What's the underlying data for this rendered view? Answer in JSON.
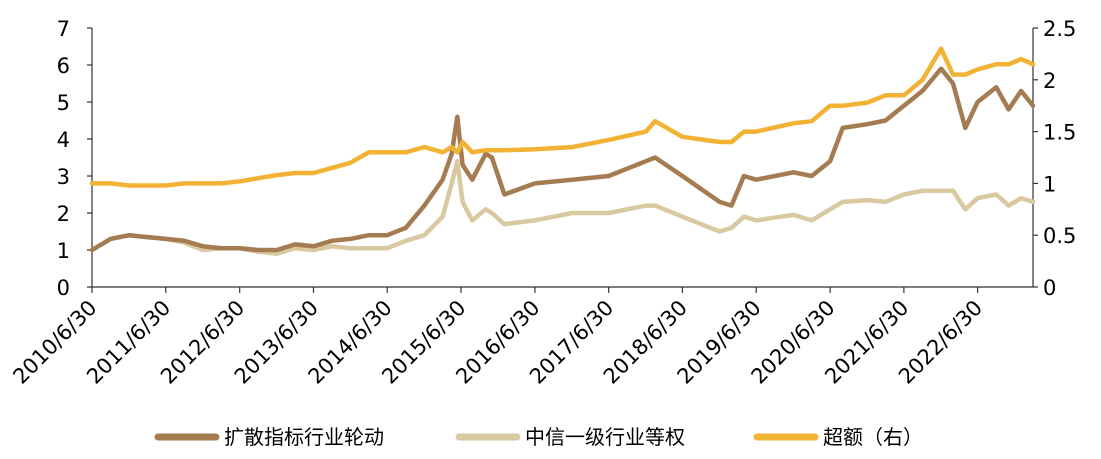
{
  "chart_data": {
    "type": "line",
    "title": "",
    "xlabel": "",
    "ylabel": "",
    "x_tick_labels": [
      "2010/6/30",
      "2011/6/30",
      "2012/6/30",
      "2013/6/30",
      "2014/6/30",
      "2015/6/30",
      "2016/6/30",
      "2017/6/30",
      "2018/6/30",
      "2019/6/30",
      "2020/6/30",
      "2021/6/30",
      "2022/6/30"
    ],
    "x_range": [
      "2010/6/30",
      "2023/3/31"
    ],
    "ylim_left": [
      0,
      7
    ],
    "yticks_left": [
      "0",
      "1",
      "2",
      "3",
      "4",
      "5",
      "6",
      "7"
    ],
    "ylim_right": [
      0,
      2.5
    ],
    "yticks_right": [
      "0",
      "0.5",
      "1",
      "1.5",
      "2",
      "2.5"
    ],
    "grid": false,
    "legend_position": "bottom",
    "series": [
      {
        "name": "扩散指标行业轮动",
        "axis": "left",
        "color": "#A57C52",
        "points": [
          [
            "2010/6/30",
            1.0
          ],
          [
            "2010/9/30",
            1.3
          ],
          [
            "2010/12/31",
            1.4
          ],
          [
            "2011/3/31",
            1.35
          ],
          [
            "2011/6/30",
            1.3
          ],
          [
            "2011/9/30",
            1.25
          ],
          [
            "2011/12/31",
            1.1
          ],
          [
            "2012/3/31",
            1.05
          ],
          [
            "2012/6/30",
            1.05
          ],
          [
            "2012/9/30",
            1.0
          ],
          [
            "2012/12/31",
            1.0
          ],
          [
            "2013/3/31",
            1.15
          ],
          [
            "2013/6/30",
            1.1
          ],
          [
            "2013/9/30",
            1.25
          ],
          [
            "2013/12/31",
            1.3
          ],
          [
            "2014/3/31",
            1.4
          ],
          [
            "2014/6/30",
            1.4
          ],
          [
            "2014/9/30",
            1.6
          ],
          [
            "2014/12/31",
            2.2
          ],
          [
            "2015/3/31",
            2.9
          ],
          [
            "2015/5/15",
            3.6
          ],
          [
            "2015/6/12",
            4.6
          ],
          [
            "2015/7/8",
            3.3
          ],
          [
            "2015/8/25",
            2.9
          ],
          [
            "2015/10/30",
            3.6
          ],
          [
            "2015/11/30",
            3.5
          ],
          [
            "2016/1/31",
            2.5
          ],
          [
            "2016/6/30",
            2.8
          ],
          [
            "2016/12/31",
            2.9
          ],
          [
            "2017/6/30",
            3.0
          ],
          [
            "2017/12/31",
            3.4
          ],
          [
            "2018/2/15",
            3.5
          ],
          [
            "2018/6/30",
            3.0
          ],
          [
            "2018/12/31",
            2.3
          ],
          [
            "2019/2/28",
            2.2
          ],
          [
            "2019/4/30",
            3.0
          ],
          [
            "2019/6/30",
            2.9
          ],
          [
            "2019/12/31",
            3.1
          ],
          [
            "2020/3/31",
            3.0
          ],
          [
            "2020/6/30",
            3.4
          ],
          [
            "2020/8/31",
            4.3
          ],
          [
            "2020/12/31",
            4.4
          ],
          [
            "2021/3/31",
            4.5
          ],
          [
            "2021/6/30",
            4.9
          ],
          [
            "2021/9/30",
            5.3
          ],
          [
            "2021/12/31",
            5.9
          ],
          [
            "2022/2/28",
            5.5
          ],
          [
            "2022/4/30",
            4.3
          ],
          [
            "2022/6/30",
            5.0
          ],
          [
            "2022/9/30",
            5.4
          ],
          [
            "2022/11/30",
            4.8
          ],
          [
            "2023/1/31",
            5.3
          ],
          [
            "2023/3/31",
            4.9
          ]
        ]
      },
      {
        "name": "中信一级行业等权",
        "axis": "left",
        "color": "#D9C9A1",
        "points": [
          [
            "2010/6/30",
            1.0
          ],
          [
            "2010/9/30",
            1.3
          ],
          [
            "2010/12/31",
            1.4
          ],
          [
            "2011/3/31",
            1.35
          ],
          [
            "2011/6/30",
            1.3
          ],
          [
            "2011/9/30",
            1.2
          ],
          [
            "2011/12/31",
            1.0
          ],
          [
            "2012/3/31",
            1.05
          ],
          [
            "2012/6/30",
            1.05
          ],
          [
            "2012/9/30",
            0.95
          ],
          [
            "2012/12/31",
            0.9
          ],
          [
            "2013/3/31",
            1.05
          ],
          [
            "2013/6/30",
            1.0
          ],
          [
            "2013/9/30",
            1.1
          ],
          [
            "2013/12/31",
            1.05
          ],
          [
            "2014/3/31",
            1.05
          ],
          [
            "2014/6/30",
            1.05
          ],
          [
            "2014/9/30",
            1.25
          ],
          [
            "2014/12/31",
            1.4
          ],
          [
            "2015/3/31",
            1.9
          ],
          [
            "2015/5/15",
            2.8
          ],
          [
            "2015/6/12",
            3.4
          ],
          [
            "2015/7/8",
            2.3
          ],
          [
            "2015/8/25",
            1.8
          ],
          [
            "2015/10/30",
            2.1
          ],
          [
            "2015/11/30",
            2.0
          ],
          [
            "2016/1/31",
            1.7
          ],
          [
            "2016/6/30",
            1.8
          ],
          [
            "2016/12/31",
            2.0
          ],
          [
            "2017/6/30",
            2.0
          ],
          [
            "2017/12/31",
            2.2
          ],
          [
            "2018/2/15",
            2.2
          ],
          [
            "2018/6/30",
            1.9
          ],
          [
            "2018/12/31",
            1.5
          ],
          [
            "2019/2/28",
            1.6
          ],
          [
            "2019/4/30",
            1.9
          ],
          [
            "2019/6/30",
            1.8
          ],
          [
            "2019/12/31",
            1.95
          ],
          [
            "2020/3/31",
            1.8
          ],
          [
            "2020/6/30",
            2.1
          ],
          [
            "2020/8/31",
            2.3
          ],
          [
            "2020/12/31",
            2.35
          ],
          [
            "2021/3/31",
            2.3
          ],
          [
            "2021/6/30",
            2.5
          ],
          [
            "2021/9/30",
            2.6
          ],
          [
            "2021/12/31",
            2.6
          ],
          [
            "2022/2/28",
            2.6
          ],
          [
            "2022/4/30",
            2.1
          ],
          [
            "2022/6/30",
            2.4
          ],
          [
            "2022/9/30",
            2.5
          ],
          [
            "2022/11/30",
            2.2
          ],
          [
            "2023/1/31",
            2.4
          ],
          [
            "2023/3/31",
            2.3
          ]
        ]
      },
      {
        "name": "超额（右）",
        "axis": "right",
        "color": "#F2B234",
        "points": [
          [
            "2010/6/30",
            1.0
          ],
          [
            "2010/9/30",
            1.0
          ],
          [
            "2010/12/31",
            0.98
          ],
          [
            "2011/3/31",
            0.98
          ],
          [
            "2011/6/30",
            0.98
          ],
          [
            "2011/9/30",
            1.0
          ],
          [
            "2011/12/31",
            1.0
          ],
          [
            "2012/3/31",
            1.0
          ],
          [
            "2012/6/30",
            1.02
          ],
          [
            "2012/9/30",
            1.05
          ],
          [
            "2012/12/31",
            1.08
          ],
          [
            "2013/3/31",
            1.1
          ],
          [
            "2013/6/30",
            1.1
          ],
          [
            "2013/9/30",
            1.15
          ],
          [
            "2013/12/31",
            1.2
          ],
          [
            "2014/3/31",
            1.3
          ],
          [
            "2014/6/30",
            1.3
          ],
          [
            "2014/9/30",
            1.3
          ],
          [
            "2014/12/31",
            1.35
          ],
          [
            "2015/3/31",
            1.3
          ],
          [
            "2015/5/15",
            1.35
          ],
          [
            "2015/6/12",
            1.3
          ],
          [
            "2015/7/8",
            1.4
          ],
          [
            "2015/8/25",
            1.3
          ],
          [
            "2015/10/30",
            1.32
          ],
          [
            "2015/11/30",
            1.32
          ],
          [
            "2016/1/31",
            1.32
          ],
          [
            "2016/6/30",
            1.33
          ],
          [
            "2016/12/31",
            1.35
          ],
          [
            "2017/6/30",
            1.42
          ],
          [
            "2017/12/31",
            1.5
          ],
          [
            "2018/2/15",
            1.6
          ],
          [
            "2018/6/30",
            1.45
          ],
          [
            "2018/12/31",
            1.4
          ],
          [
            "2019/2/28",
            1.4
          ],
          [
            "2019/4/30",
            1.5
          ],
          [
            "2019/6/30",
            1.5
          ],
          [
            "2019/12/31",
            1.58
          ],
          [
            "2020/3/31",
            1.6
          ],
          [
            "2020/6/30",
            1.75
          ],
          [
            "2020/8/31",
            1.75
          ],
          [
            "2020/12/31",
            1.78
          ],
          [
            "2021/3/31",
            1.85
          ],
          [
            "2021/6/30",
            1.85
          ],
          [
            "2021/9/30",
            2.0
          ],
          [
            "2021/12/31",
            2.3
          ],
          [
            "2022/2/28",
            2.05
          ],
          [
            "2022/4/30",
            2.05
          ],
          [
            "2022/6/30",
            2.1
          ],
          [
            "2022/9/30",
            2.15
          ],
          [
            "2022/11/30",
            2.15
          ],
          [
            "2023/1/31",
            2.2
          ],
          [
            "2023/3/31",
            2.15
          ]
        ]
      }
    ]
  }
}
